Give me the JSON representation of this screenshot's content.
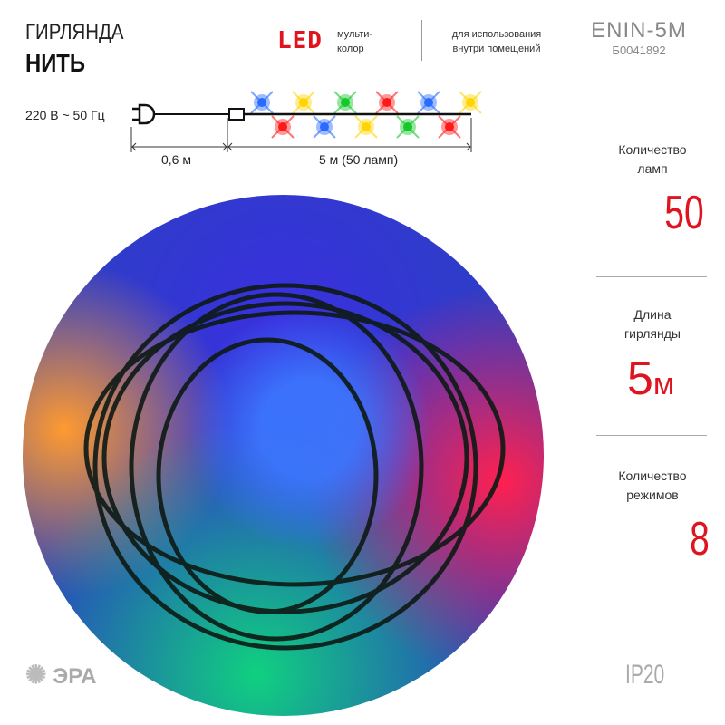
{
  "header": {
    "product_type": "ГИРЛЯНДА",
    "product_name": "НИТЬ",
    "led": "LED",
    "led_color": "мульти-\nколор",
    "usage": "для использования\nвнутри помещений",
    "model": "ENIN-5M",
    "sku": "Б0041892"
  },
  "diagram": {
    "voltage": "220 В ~ 50 Гц",
    "cord_length": "0,6 м",
    "garland_length": "5 м (50 ламп)",
    "lamp_colors": [
      "#2a6bff",
      "#ffd400",
      "#16c82a",
      "#ff1a1a",
      "#2a6bff",
      "#ffd400"
    ],
    "lamp_colors_lower": [
      "#ff1a1a",
      "#2a6bff",
      "#ffd400",
      "#16c82a",
      "#ff1a1a"
    ]
  },
  "specs": [
    {
      "label": "Количество\nламп",
      "value": "50"
    },
    {
      "label": "Длина\nгирлянды",
      "value": "5",
      "unit": "м"
    },
    {
      "label": "Количество\nрежимов",
      "value": "8"
    }
  ],
  "footer": {
    "brand": "ЭРА",
    "rating": "IP20"
  },
  "colors": {
    "accent": "#e0141e",
    "gray": "#888888"
  }
}
